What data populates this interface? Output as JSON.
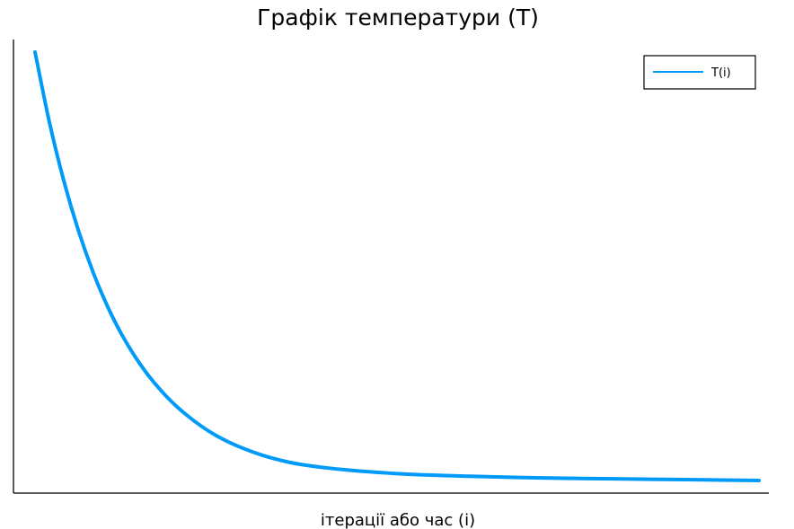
{
  "chart_data": {
    "type": "line",
    "title": "Графік температури (T)",
    "xlabel": "ітерації або час (i)",
    "ylabel": "",
    "grid": false,
    "legend_position": "top-right",
    "axis_ticks_visible": false,
    "series": [
      {
        "name": "T(i)",
        "color": "#009af9",
        "x": [
          0,
          0.02,
          0.04,
          0.06,
          0.08,
          0.1,
          0.12,
          0.15,
          0.18,
          0.21,
          0.25,
          0.3,
          0.35,
          0.4,
          0.5,
          0.6,
          0.7,
          0.8,
          0.9,
          1.0
        ],
        "y": [
          1.0,
          0.835,
          0.698,
          0.583,
          0.487,
          0.407,
          0.34,
          0.26,
          0.199,
          0.152,
          0.105,
          0.067,
          0.043,
          0.03,
          0.016,
          0.01,
          0.006,
          0.004,
          0.002,
          0.0
        ]
      }
    ]
  }
}
